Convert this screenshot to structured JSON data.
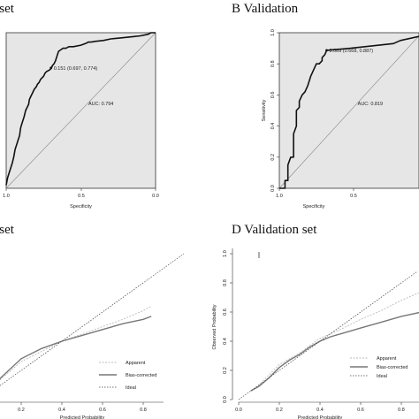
{
  "chart_data": [
    {
      "panel": "A",
      "type": "line",
      "title": "g set",
      "xlabel": "Specificity",
      "ylabel": "",
      "xlim": [
        1.0,
        0.0
      ],
      "ylim": [
        0.0,
        1.0
      ],
      "x_ticks": [
        "1.0",
        "0.5",
        "0.0"
      ],
      "y_ticks": [],
      "series": [
        {
          "x": [
            1.0,
            0.99,
            0.98,
            0.97,
            0.96,
            0.95,
            0.94,
            0.93,
            0.92,
            0.91,
            0.905,
            0.9,
            0.89,
            0.88,
            0.87,
            0.86,
            0.85,
            0.845,
            0.84,
            0.83,
            0.82,
            0.81,
            0.8,
            0.79,
            0.78,
            0.77,
            0.76,
            0.75,
            0.74,
            0.73,
            0.72,
            0.71,
            0.7,
            0.697,
            0.69,
            0.68,
            0.67,
            0.66,
            0.65,
            0.62,
            0.6,
            0.58,
            0.55,
            0.5,
            0.47,
            0.45,
            0.43,
            0.4,
            0.35,
            0.3,
            0.25,
            0.2,
            0.15,
            0.1,
            0.05,
            0.03,
            0.0
          ],
          "y": [
            0.02,
            0.07,
            0.1,
            0.13,
            0.16,
            0.2,
            0.25,
            0.28,
            0.31,
            0.34,
            0.38,
            0.4,
            0.43,
            0.46,
            0.5,
            0.52,
            0.54,
            0.57,
            0.58,
            0.6,
            0.62,
            0.64,
            0.65,
            0.67,
            0.68,
            0.7,
            0.71,
            0.72,
            0.74,
            0.75,
            0.755,
            0.76,
            0.77,
            0.774,
            0.79,
            0.8,
            0.82,
            0.85,
            0.88,
            0.9,
            0.9,
            0.91,
            0.91,
            0.92,
            0.93,
            0.94,
            0.94,
            0.945,
            0.95,
            0.96,
            0.965,
            0.97,
            0.975,
            0.98,
            0.99,
            1.0,
            1.0
          ]
        }
      ],
      "annotations": [
        {
          "text": "0.151 (0.697, 0.774)",
          "x": 0.7,
          "y": 0.774
        },
        {
          "text": "AUC: 0.794",
          "x": 0.45,
          "y": 0.5
        }
      ]
    },
    {
      "panel": "B",
      "type": "line",
      "title": "B Validation",
      "xlabel": "Specificity",
      "ylabel": "Sensitivity",
      "xlim": [
        1.0,
        0.0
      ],
      "ylim": [
        0.0,
        1.0
      ],
      "x_ticks": [
        "1.0",
        "0.5"
      ],
      "y_ticks": [
        "0.0",
        "0.2",
        "0.4",
        "0.6",
        "0.8",
        "1.0"
      ],
      "series": [
        {
          "x": [
            1.0,
            0.96,
            0.96,
            0.94,
            0.94,
            0.92,
            0.9,
            0.9,
            0.88,
            0.88,
            0.86,
            0.86,
            0.84,
            0.82,
            0.8,
            0.78,
            0.76,
            0.74,
            0.72,
            0.7,
            0.7,
            0.68,
            0.668,
            0.5,
            0.4,
            0.3,
            0.2,
            0.15,
            0.0
          ],
          "y": [
            0.0,
            0.0,
            0.05,
            0.05,
            0.15,
            0.2,
            0.2,
            0.35,
            0.4,
            0.5,
            0.52,
            0.56,
            0.6,
            0.62,
            0.66,
            0.72,
            0.76,
            0.8,
            0.8,
            0.82,
            0.84,
            0.86,
            0.887,
            0.9,
            0.91,
            0.92,
            0.93,
            0.95,
            0.98
          ]
        }
      ],
      "annotations": [
        {
          "text": "0.089 (0.668, 0.887)",
          "x": 0.668,
          "y": 0.887
        },
        {
          "text": "AUC: 0.819",
          "x": 0.45,
          "y": 0.5
        }
      ]
    },
    {
      "panel": "C",
      "type": "line",
      "title": "g set",
      "xlabel": "Predicted Probability",
      "ylabel": "",
      "xlim": [
        0.0,
        1.0
      ],
      "ylim": [
        0.0,
        1.0
      ],
      "x_ticks": [
        "0.2",
        "0.4",
        "0.6",
        "0.8"
      ],
      "y_ticks": [],
      "legend": [
        "Apparent",
        "Bias-corrected",
        "Ideal"
      ],
      "series": [
        {
          "name": "Apparent",
          "x": [
            0.02,
            0.1,
            0.2,
            0.3,
            0.4,
            0.5,
            0.6,
            0.7,
            0.8,
            0.84
          ],
          "y": [
            0.03,
            0.14,
            0.26,
            0.33,
            0.4,
            0.45,
            0.5,
            0.55,
            0.61,
            0.64
          ]
        },
        {
          "name": "Bias-corrected",
          "x": [
            0.02,
            0.1,
            0.2,
            0.3,
            0.4,
            0.5,
            0.6,
            0.7,
            0.8,
            0.84
          ],
          "y": [
            0.03,
            0.15,
            0.28,
            0.35,
            0.4,
            0.44,
            0.48,
            0.52,
            0.55,
            0.57
          ]
        },
        {
          "name": "Ideal",
          "x": [
            0.0,
            1.0
          ],
          "y": [
            0.0,
            1.0
          ]
        }
      ]
    },
    {
      "panel": "D",
      "type": "line",
      "title": "D Validation set",
      "xlabel": "Predicted Probability",
      "ylabel": "Observed Probability",
      "xlim": [
        0.0,
        1.0
      ],
      "ylim": [
        0.0,
        1.0
      ],
      "x_ticks": [
        "0.0",
        "0.2",
        "0.4",
        "0.6",
        "0.8"
      ],
      "y_ticks": [
        "0.0",
        "0.2",
        "0.4",
        "0.6",
        "0.8",
        "1.0"
      ],
      "legend": [
        "Apparent",
        "Bias-corrected",
        "Ideal"
      ],
      "series": [
        {
          "name": "Apparent",
          "x": [
            0.06,
            0.1,
            0.15,
            0.2,
            0.25,
            0.3,
            0.35,
            0.4,
            0.45,
            0.5,
            0.6,
            0.7,
            0.8,
            0.9
          ],
          "y": [
            0.06,
            0.1,
            0.17,
            0.24,
            0.28,
            0.32,
            0.37,
            0.42,
            0.45,
            0.48,
            0.55,
            0.61,
            0.68,
            0.74
          ]
        },
        {
          "name": "Bias-corrected",
          "x": [
            0.06,
            0.1,
            0.15,
            0.2,
            0.25,
            0.3,
            0.35,
            0.4,
            0.45,
            0.5,
            0.6,
            0.7,
            0.8,
            0.9
          ],
          "y": [
            0.06,
            0.09,
            0.15,
            0.22,
            0.27,
            0.31,
            0.36,
            0.4,
            0.43,
            0.45,
            0.49,
            0.53,
            0.57,
            0.6
          ]
        },
        {
          "name": "Ideal",
          "x": [
            0.0,
            1.0
          ],
          "y": [
            0.0,
            1.0
          ]
        }
      ]
    }
  ]
}
